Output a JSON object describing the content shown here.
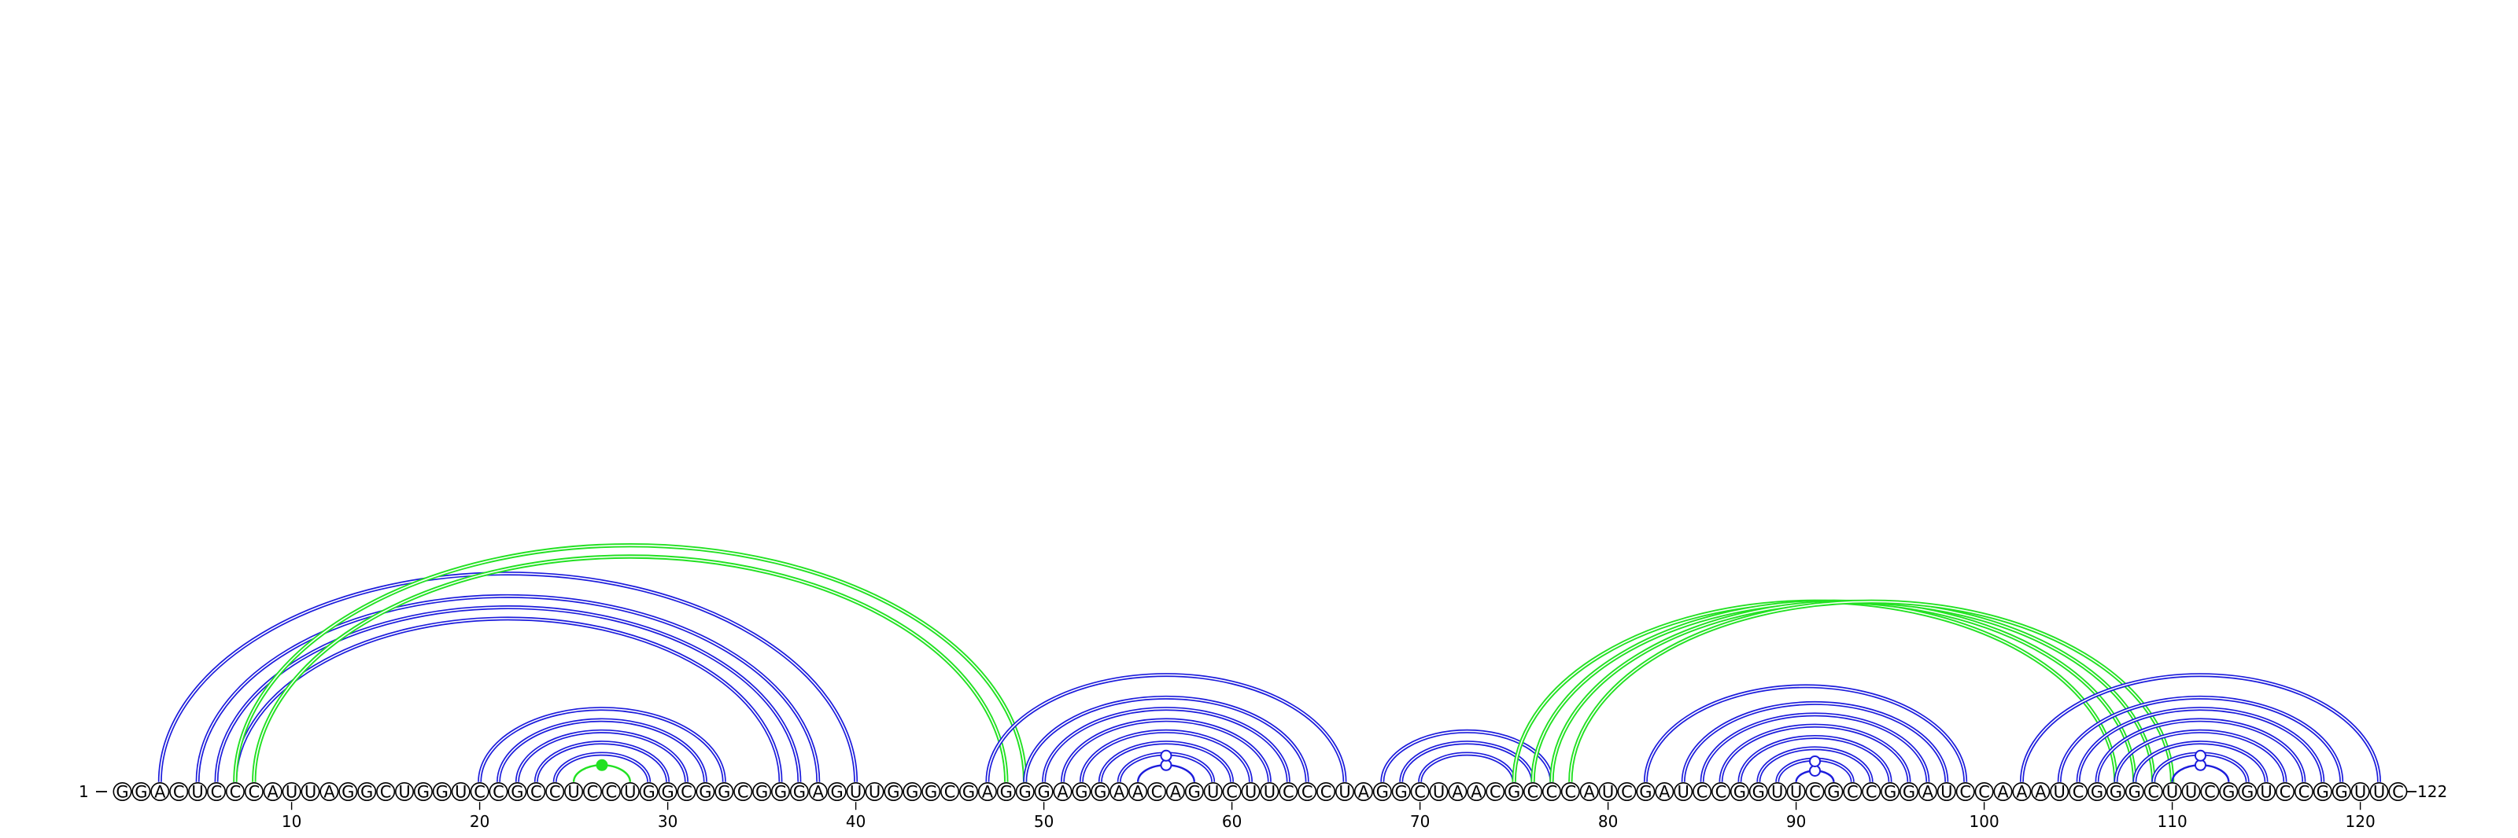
{
  "sequence": "GGACUCCCAUUAGGCUGGUCCGCCUCCUGGCGGCGGGAGUUGGGCGAGGGAGGAACAGUCUUCCCUAGGCUAACGCCCAUCGAUCCGGUUCGCCGGAUCCAAAUCGGGCUUCGGUCCGGUUC",
  "start_label": "1",
  "end_label": "122",
  "tick_labels": [
    "10",
    "20",
    "30",
    "40",
    "50",
    "60",
    "70",
    "80",
    "90",
    "100",
    "110",
    "120"
  ],
  "colors": {
    "pair_arc": "#1c1cdc",
    "pseudoknot_arc": "#22e122",
    "nucleotide_outline": "#000000",
    "background": "#ffffff"
  },
  "helices": [
    {
      "type": "pair",
      "pairs": [
        [
          3,
          40
        ],
        [
          5,
          38
        ],
        [
          6,
          37
        ],
        [
          7,
          36
        ]
      ]
    },
    {
      "type": "pseudoknot",
      "pairs": [
        [
          7,
          49
        ],
        [
          8,
          48
        ]
      ]
    },
    {
      "type": "pair",
      "pairs": [
        [
          20,
          33
        ],
        [
          21,
          32
        ],
        [
          22,
          31
        ],
        [
          23,
          30
        ],
        [
          24,
          29
        ]
      ]
    },
    {
      "type": "pseudoknot",
      "pairs": [
        [
          25,
          28
        ]
      ]
    },
    {
      "type": "pair",
      "pairs": [
        [
          47,
          66
        ],
        [
          49,
          64
        ],
        [
          50,
          63
        ],
        [
          51,
          62
        ],
        [
          52,
          61
        ],
        [
          53,
          60
        ],
        [
          54,
          59
        ],
        [
          55,
          58
        ]
      ]
    },
    {
      "type": "pair",
      "pairs": [
        [
          68,
          77
        ],
        [
          69,
          76
        ],
        [
          70,
          75
        ]
      ]
    },
    {
      "type": "pseudoknot",
      "pairs": [
        [
          75,
          107
        ],
        [
          76,
          108
        ],
        [
          77,
          109
        ],
        [
          78,
          110
        ]
      ]
    },
    {
      "type": "pair",
      "pairs": [
        [
          82,
          99
        ],
        [
          84,
          98
        ],
        [
          85,
          97
        ],
        [
          86,
          96
        ],
        [
          87,
          95
        ],
        [
          88,
          94
        ],
        [
          89,
          93
        ],
        [
          90,
          92
        ]
      ]
    },
    {
      "type": "pair",
      "pairs": [
        [
          102,
          121
        ],
        [
          104,
          119
        ],
        [
          105,
          118
        ],
        [
          106,
          117
        ],
        [
          107,
          116
        ],
        [
          108,
          115
        ],
        [
          109,
          114
        ],
        [
          110,
          113
        ]
      ]
    }
  ]
}
